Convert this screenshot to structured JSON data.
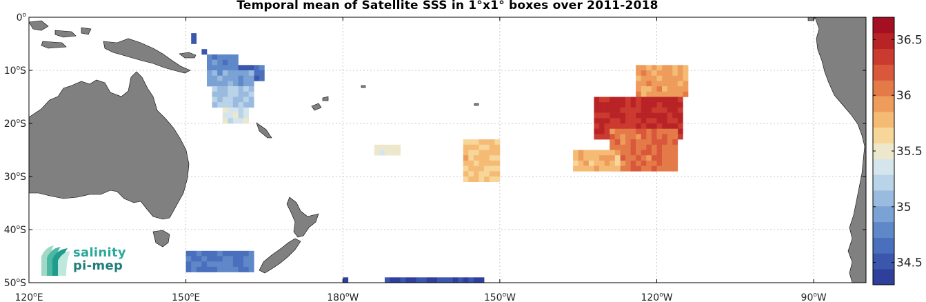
{
  "title": "Temporal mean of Satellite SSS in 1°x1° boxes over 2011-2018",
  "map": {
    "lon_range": [
      120,
      280
    ],
    "lat_range": [
      -50,
      0
    ],
    "x_ticks": [
      {
        "lon": 120,
        "deg": "120",
        "hemi": "E"
      },
      {
        "lon": 150,
        "deg": "150",
        "hemi": "E"
      },
      {
        "lon": 180,
        "deg": "180",
        "hemi": "W"
      },
      {
        "lon": 210,
        "deg": "150",
        "hemi": "W"
      },
      {
        "lon": 240,
        "deg": "120",
        "hemi": "W"
      },
      {
        "lon": 270,
        "deg": "90",
        "hemi": "W"
      }
    ],
    "y_ticks": [
      {
        "lat": 0,
        "deg": "0",
        "hemi": ""
      },
      {
        "lat": -10,
        "deg": "10",
        "hemi": "S"
      },
      {
        "lat": -20,
        "deg": "20",
        "hemi": "S"
      },
      {
        "lat": -30,
        "deg": "30",
        "hemi": "S"
      },
      {
        "lat": -40,
        "deg": "40",
        "hemi": "S"
      },
      {
        "lat": -50,
        "deg": "50",
        "hemi": "S"
      }
    ],
    "grid": true,
    "land_color": "#808080"
  },
  "colorbar": {
    "min": 34.3,
    "max": 36.7,
    "ticks": [
      34.5,
      35,
      35.5,
      36,
      36.5
    ],
    "colors": [
      "#2f3f9c",
      "#3b56ad",
      "#4a6fbd",
      "#5f88c8",
      "#7ba2d4",
      "#9abbdf",
      "#b9d3e8",
      "#d4e6ec",
      "#ede8cc",
      "#f7d69a",
      "#f5bb74",
      "#ee9c5c",
      "#e47a48",
      "#d9573a",
      "#cb3a2f",
      "#b82326",
      "#a50f22"
    ]
  },
  "logo": {
    "line1": "salinity",
    "line2": "pi-mep"
  },
  "chart_data": {
    "type": "heatmap",
    "title": "Temporal mean of Satellite SSS in 1°x1° boxes over 2011-2018",
    "cell_size_deg": 1,
    "value_range": [
      34.3,
      36.7
    ],
    "regions": [
      {
        "lon": [
          151,
          152
        ],
        "lat": [
          -3,
          -5
        ],
        "value": 34.45
      },
      {
        "lon": [
          153,
          154
        ],
        "lat": [
          -6,
          -7
        ],
        "value": 34.55
      },
      {
        "lon": [
          154,
          160
        ],
        "lat": [
          -7,
          -10
        ],
        "value": 34.8
      },
      {
        "lon": [
          160,
          165
        ],
        "lat": [
          -9,
          -12
        ],
        "value": 34.65
      },
      {
        "lon": [
          154,
          163
        ],
        "lat": [
          -10,
          -13
        ],
        "value": 34.95
      },
      {
        "lon": [
          155,
          163
        ],
        "lat": [
          -13,
          -17
        ],
        "value": 35.15
      },
      {
        "lon": [
          157,
          162
        ],
        "lat": [
          -17,
          -20
        ],
        "value": 35.35
      },
      {
        "lon": [
          150,
          163
        ],
        "lat": [
          -44,
          -48
        ],
        "value": 34.75
      },
      {
        "lon": [
          180,
          181
        ],
        "lat": [
          -49,
          -50
        ],
        "value": 34.4
      },
      {
        "lon": [
          188,
          207
        ],
        "lat": [
          -49,
          -50
        ],
        "value": 34.4
      },
      {
        "lon": [
          186,
          191
        ],
        "lat": [
          -24,
          -26
        ],
        "value": 35.45
      },
      {
        "lon": [
          203,
          210
        ],
        "lat": [
          -23,
          -31
        ],
        "value": 35.75
      },
      {
        "lon": [
          236,
          246
        ],
        "lat": [
          -9,
          -15
        ],
        "value": 35.9
      },
      {
        "lon": [
          228,
          245
        ],
        "lat": [
          -15,
          -23
        ],
        "value": 36.45
      },
      {
        "lon": [
          231,
          244
        ],
        "lat": [
          -21,
          -29
        ],
        "value": 36.1
      },
      {
        "lon": [
          224,
          233
        ],
        "lat": [
          -25,
          -29
        ],
        "value": 35.8
      }
    ]
  }
}
